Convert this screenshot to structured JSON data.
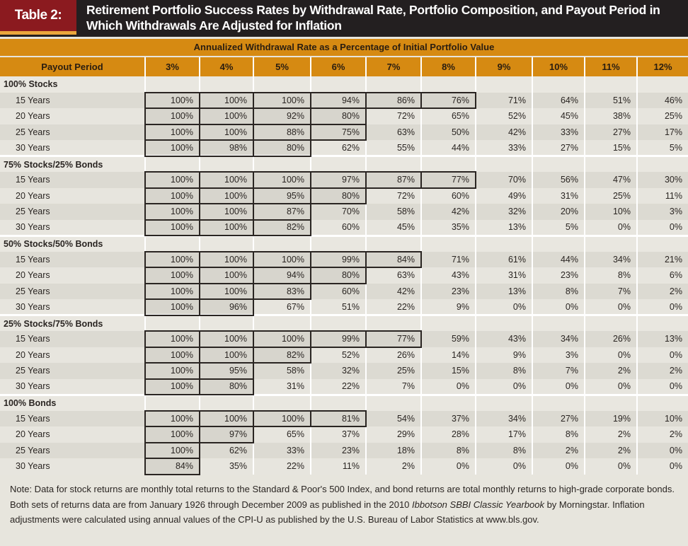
{
  "header": {
    "tag": "Table 2:",
    "title": "Retirement Portfolio Success Rates by Withdrawal Rate, Portfolio Composition, and Payout Period in Which Withdrawals Are Adjusted for Inflation",
    "colors": {
      "bar": "#231f20",
      "tag": "#8b1a1f",
      "accent": "#eaa63c",
      "band": "#d68a12"
    }
  },
  "table": {
    "super_header": "Annualized Withdrawal Rate as a Percentage of Initial Portfolio Value",
    "columns": [
      "Payout Period",
      "3%",
      "4%",
      "5%",
      "6%",
      "7%",
      "8%",
      "9%",
      "10%",
      "11%",
      "12%"
    ],
    "groups": [
      {
        "name": "100% Stocks",
        "rows": [
          {
            "period": "15 Years",
            "values": [
              "100%",
              "100%",
              "100%",
              "94%",
              "86%",
              "76%",
              "71%",
              "64%",
              "51%",
              "46%"
            ]
          },
          {
            "period": "20 Years",
            "values": [
              "100%",
              "100%",
              "92%",
              "80%",
              "72%",
              "65%",
              "52%",
              "45%",
              "38%",
              "25%"
            ]
          },
          {
            "period": "25 Years",
            "values": [
              "100%",
              "100%",
              "88%",
              "75%",
              "63%",
              "50%",
              "42%",
              "33%",
              "27%",
              "17%"
            ]
          },
          {
            "period": "30 Years",
            "values": [
              "100%",
              "98%",
              "80%",
              "62%",
              "55%",
              "44%",
              "33%",
              "27%",
              "15%",
              "5%"
            ]
          }
        ]
      },
      {
        "name": "75% Stocks/25% Bonds",
        "rows": [
          {
            "period": "15 Years",
            "values": [
              "100%",
              "100%",
              "100%",
              "97%",
              "87%",
              "77%",
              "70%",
              "56%",
              "47%",
              "30%"
            ]
          },
          {
            "period": "20 Years",
            "values": [
              "100%",
              "100%",
              "95%",
              "80%",
              "72%",
              "60%",
              "49%",
              "31%",
              "25%",
              "11%"
            ]
          },
          {
            "period": "25 Years",
            "values": [
              "100%",
              "100%",
              "87%",
              "70%",
              "58%",
              "42%",
              "32%",
              "20%",
              "10%",
              "3%"
            ]
          },
          {
            "period": "30 Years",
            "values": [
              "100%",
              "100%",
              "82%",
              "60%",
              "45%",
              "35%",
              "13%",
              "5%",
              "0%",
              "0%"
            ]
          }
        ]
      },
      {
        "name": "50% Stocks/50% Bonds",
        "rows": [
          {
            "period": "15 Years",
            "values": [
              "100%",
              "100%",
              "100%",
              "99%",
              "84%",
              "71%",
              "61%",
              "44%",
              "34%",
              "21%"
            ]
          },
          {
            "period": "20 Years",
            "values": [
              "100%",
              "100%",
              "94%",
              "80%",
              "63%",
              "43%",
              "31%",
              "23%",
              "8%",
              "6%"
            ]
          },
          {
            "period": "25 Years",
            "values": [
              "100%",
              "100%",
              "83%",
              "60%",
              "42%",
              "23%",
              "13%",
              "8%",
              "7%",
              "2%"
            ]
          },
          {
            "period": "30 Years",
            "values": [
              "100%",
              "96%",
              "67%",
              "51%",
              "22%",
              "9%",
              "0%",
              "0%",
              "0%",
              "0%"
            ]
          }
        ]
      },
      {
        "name": "25% Stocks/75% Bonds",
        "rows": [
          {
            "period": "15 Years",
            "values": [
              "100%",
              "100%",
              "100%",
              "99%",
              "77%",
              "59%",
              "43%",
              "34%",
              "26%",
              "13%"
            ]
          },
          {
            "period": "20 Years",
            "values": [
              "100%",
              "100%",
              "82%",
              "52%",
              "26%",
              "14%",
              "9%",
              "3%",
              "0%",
              "0%"
            ]
          },
          {
            "period": "25 Years",
            "values": [
              "100%",
              "95%",
              "58%",
              "32%",
              "25%",
              "15%",
              "8%",
              "7%",
              "2%",
              "2%"
            ]
          },
          {
            "period": "30 Years",
            "values": [
              "100%",
              "80%",
              "31%",
              "22%",
              "7%",
              "0%",
              "0%",
              "0%",
              "0%",
              "0%"
            ]
          }
        ]
      },
      {
        "name": "100% Bonds",
        "rows": [
          {
            "period": "15 Years",
            "values": [
              "100%",
              "100%",
              "100%",
              "81%",
              "54%",
              "37%",
              "34%",
              "27%",
              "19%",
              "10%"
            ]
          },
          {
            "period": "20 Years",
            "values": [
              "100%",
              "97%",
              "65%",
              "37%",
              "29%",
              "28%",
              "17%",
              "8%",
              "2%",
              "2%"
            ]
          },
          {
            "period": "25 Years",
            "values": [
              "100%",
              "62%",
              "33%",
              "23%",
              "18%",
              "8%",
              "8%",
              "2%",
              "2%",
              "0%"
            ]
          },
          {
            "period": "30 Years",
            "values": [
              "84%",
              "35%",
              "22%",
              "11%",
              "2%",
              "0%",
              "0%",
              "0%",
              "0%",
              "0%"
            ]
          }
        ]
      }
    ]
  },
  "note": {
    "text1": "Note: Data for stock returns are monthly total returns to the Standard & Poor's 500 Index, and bond returns are total monthly returns to high-grade corporate bonds. Both sets of returns data are from January 1926 through December 2009 as published in the 2010 ",
    "italic": "Ibbotson SBBI Classic Yearbook",
    "text2": " by Morningstar. Inflation adjustments were calculated using annual values of the CPI-U as published by the U.S. Bureau of Labor Statistics at www.bls.gov."
  }
}
